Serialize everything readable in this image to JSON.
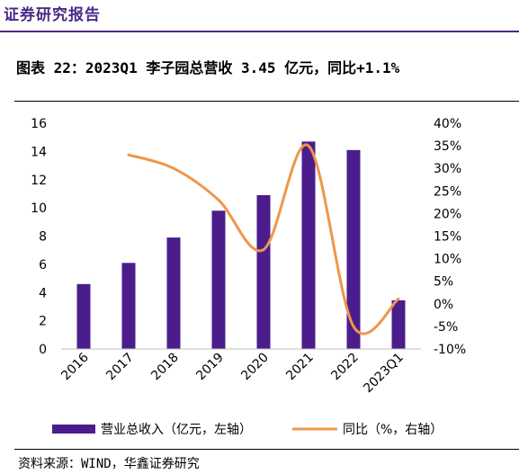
{
  "header": {
    "title": "证券研究报告"
  },
  "figure": {
    "title": "图表 22：2023Q1 李子园总营收 3.45 亿元，同比+1.1%"
  },
  "source": "资料来源：WIND，华鑫证券研究",
  "colors": {
    "bar": "#4b1d8c",
    "line": "#f0964a",
    "brand": "#4b2a86"
  },
  "chart_data": {
    "type": "bar+line",
    "categories": [
      "2016",
      "2017",
      "2018",
      "2019",
      "2020",
      "2021",
      "2022",
      "2023Q1"
    ],
    "series": [
      {
        "name": "营业总收入（亿元，左轴）",
        "type": "bar",
        "axis": "left",
        "values": [
          4.6,
          6.1,
          7.9,
          9.8,
          10.9,
          14.7,
          14.1,
          3.45
        ]
      },
      {
        "name": "同比（%，右轴）",
        "type": "line",
        "axis": "right",
        "values": [
          null,
          33,
          30,
          23,
          12,
          35,
          -5,
          1.1
        ]
      }
    ],
    "left_axis": {
      "min": 0,
      "max": 16,
      "step": 2,
      "ticks": [
        "0",
        "2",
        "4",
        "6",
        "8",
        "10",
        "12",
        "14",
        "16"
      ]
    },
    "right_axis": {
      "min": -10,
      "max": 40,
      "step": 5,
      "ticks": [
        "-10%",
        "-5%",
        "0%",
        "5%",
        "10%",
        "15%",
        "20%",
        "25%",
        "30%",
        "35%",
        "40%"
      ]
    },
    "legend_position": "bottom",
    "grid": false
  }
}
